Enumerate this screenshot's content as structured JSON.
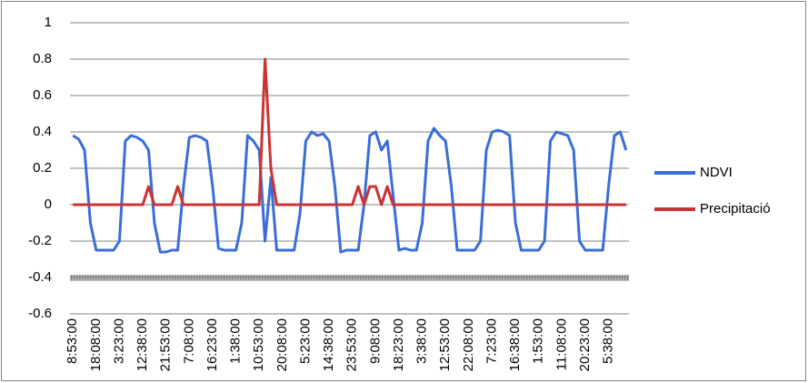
{
  "chart_data": {
    "type": "line",
    "categories": [
      "8:53:00",
      null,
      null,
      null,
      "18:08:00",
      null,
      null,
      null,
      "3:23:00",
      null,
      null,
      null,
      "12:38:00",
      null,
      null,
      null,
      "21:53:00",
      null,
      null,
      null,
      "7:08:00",
      null,
      null,
      null,
      "16:23:00",
      null,
      null,
      null,
      "1:38:00",
      null,
      null,
      null,
      "10:53:00",
      null,
      null,
      null,
      "20:08:00",
      null,
      null,
      null,
      "5:23:00",
      null,
      null,
      null,
      "14:38:00",
      null,
      null,
      null,
      "23:53:00",
      null,
      null,
      null,
      "9:08:00",
      null,
      null,
      null,
      "18:23:00",
      null,
      null,
      null,
      "3:38:00",
      null,
      null,
      null,
      "12:53:00",
      null,
      null,
      null,
      "22:08:00",
      null,
      null,
      null,
      "7:23:00",
      null,
      null,
      null,
      "16:38:00",
      null,
      null,
      null,
      "1:53:00",
      null,
      null,
      null,
      "11:08:00",
      null,
      null,
      null,
      "20:23:00",
      null,
      null,
      null,
      "5:38:00",
      null,
      null,
      null
    ],
    "series": [
      {
        "name": "NDVI",
        "color": "#3a6ed6",
        "values": [
          0.38,
          0.36,
          0.3,
          -0.1,
          -0.25,
          -0.25,
          -0.25,
          -0.25,
          -0.2,
          0.35,
          0.38,
          0.37,
          0.35,
          0.3,
          -0.1,
          -0.26,
          -0.26,
          -0.25,
          -0.25,
          0.1,
          0.37,
          0.38,
          0.37,
          0.35,
          0.1,
          -0.24,
          -0.25,
          -0.25,
          -0.25,
          -0.1,
          0.38,
          0.35,
          0.3,
          -0.2,
          0.15,
          -0.25,
          -0.25,
          -0.25,
          -0.25,
          -0.05,
          0.35,
          0.4,
          0.38,
          0.39,
          0.35,
          0.1,
          -0.26,
          -0.25,
          -0.25,
          -0.25,
          0.0,
          0.38,
          0.4,
          0.3,
          0.35,
          0.05,
          -0.25,
          -0.24,
          -0.25,
          -0.25,
          -0.1,
          0.35,
          0.42,
          0.38,
          0.35,
          0.1,
          -0.25,
          -0.25,
          -0.25,
          -0.25,
          -0.2,
          0.3,
          0.4,
          0.41,
          0.4,
          0.38,
          -0.1,
          -0.25,
          -0.25,
          -0.25,
          -0.25,
          -0.2,
          0.35,
          0.4,
          0.39,
          0.38,
          0.3,
          -0.2,
          -0.25,
          -0.25,
          -0.25,
          -0.25,
          0.1,
          0.38,
          0.4,
          0.3
        ]
      },
      {
        "name": "Precipitació",
        "color": "#cc3333",
        "values": [
          0,
          0,
          0,
          0,
          0,
          0,
          0,
          0,
          0,
          0,
          0,
          0,
          0,
          0.1,
          0,
          0,
          0,
          0,
          0.1,
          0,
          0,
          0,
          0,
          0,
          0,
          0,
          0,
          0,
          0,
          0,
          0,
          0,
          0,
          0.8,
          0.2,
          0,
          0,
          0,
          0,
          0,
          0,
          0,
          0,
          0,
          0,
          0,
          0,
          0,
          0,
          0.1,
          0,
          0.1,
          0.1,
          0,
          0.1,
          0,
          0,
          0,
          0,
          0,
          0,
          0,
          0,
          0,
          0,
          0,
          0,
          0,
          0,
          0,
          0,
          0,
          0,
          0,
          0,
          0,
          0,
          0,
          0,
          0,
          0,
          0,
          0,
          0,
          0,
          0,
          0,
          0,
          0,
          0,
          0,
          0,
          0,
          0,
          0,
          0
        ]
      }
    ],
    "ylim": [
      -0.6,
      1
    ],
    "yticks": [
      1,
      0.8,
      0.6,
      0.4,
      0.2,
      0,
      -0.2,
      -0.4,
      -0.6
    ],
    "grid": true,
    "legend": "right"
  }
}
